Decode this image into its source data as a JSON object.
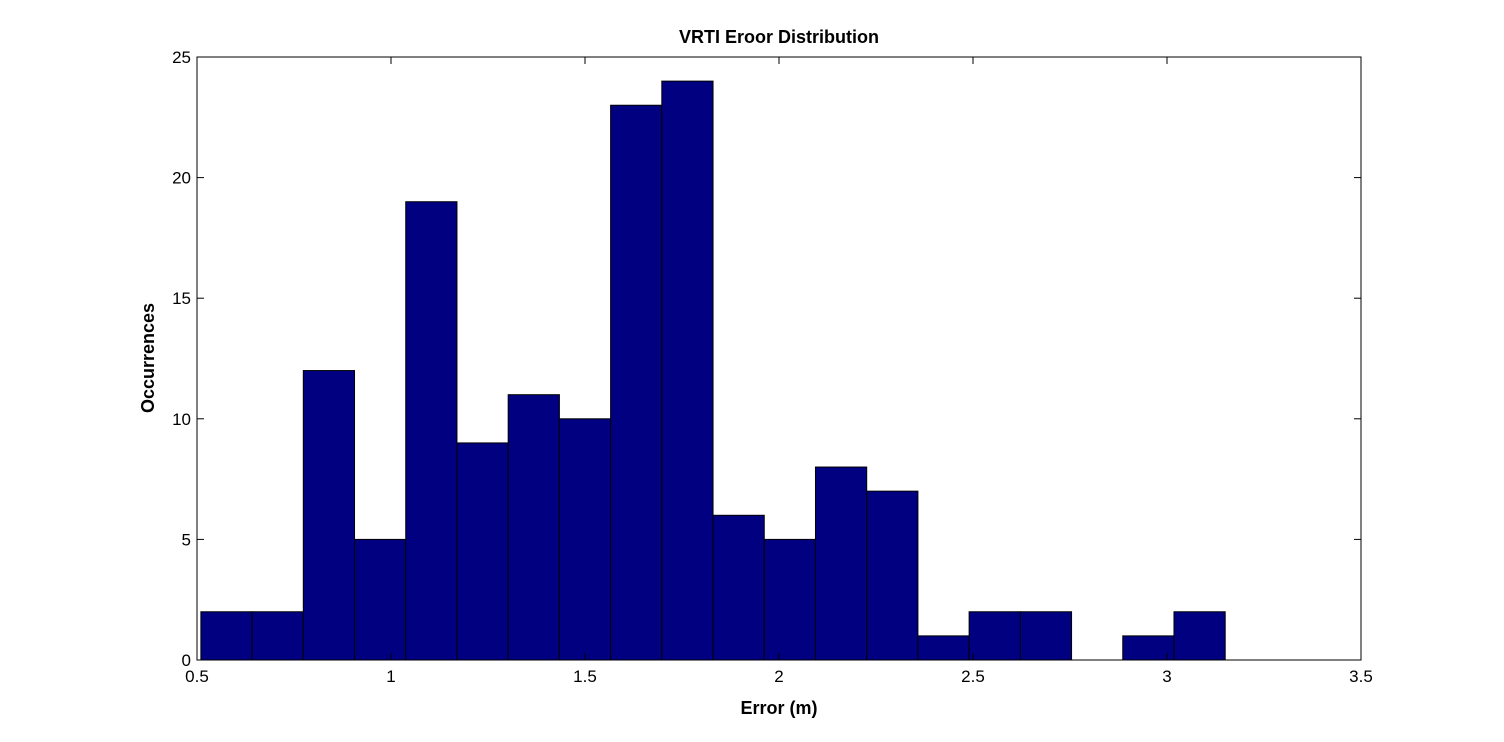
{
  "chart_data": {
    "type": "bar",
    "title": "VRTI Eroor Distribution",
    "xlabel": "Error (m)",
    "ylabel": "Occurrences",
    "xlim": [
      0.5,
      3.5
    ],
    "ylim": [
      0,
      25
    ],
    "xticks": [
      0.5,
      1,
      1.5,
      2,
      2.5,
      3,
      3.5
    ],
    "xtick_labels": [
      "0.5",
      "1",
      "1.5",
      "2",
      "2.5",
      "3",
      "3.5"
    ],
    "yticks": [
      0,
      5,
      10,
      15,
      20,
      25
    ],
    "ytick_labels": [
      "0",
      "5",
      "10",
      "15",
      "20",
      "25"
    ],
    "grid": false,
    "bar_color": "#000080",
    "bar_edge_color": "#000000",
    "bins": [
      {
        "x0": 0.51,
        "x1": 0.642,
        "count": 2
      },
      {
        "x0": 0.642,
        "x1": 0.774,
        "count": 2
      },
      {
        "x0": 0.774,
        "x1": 0.906,
        "count": 12
      },
      {
        "x0": 0.906,
        "x1": 1.038,
        "count": 5
      },
      {
        "x0": 1.038,
        "x1": 1.17,
        "count": 19
      },
      {
        "x0": 1.17,
        "x1": 1.302,
        "count": 9
      },
      {
        "x0": 1.302,
        "x1": 1.434,
        "count": 11
      },
      {
        "x0": 1.434,
        "x1": 1.566,
        "count": 10
      },
      {
        "x0": 1.566,
        "x1": 1.698,
        "count": 23
      },
      {
        "x0": 1.698,
        "x1": 1.83,
        "count": 24
      },
      {
        "x0": 1.83,
        "x1": 1.962,
        "count": 6
      },
      {
        "x0": 1.962,
        "x1": 2.094,
        "count": 5
      },
      {
        "x0": 2.094,
        "x1": 2.226,
        "count": 8
      },
      {
        "x0": 2.226,
        "x1": 2.358,
        "count": 7
      },
      {
        "x0": 2.358,
        "x1": 2.49,
        "count": 1
      },
      {
        "x0": 2.49,
        "x1": 2.622,
        "count": 2
      },
      {
        "x0": 2.622,
        "x1": 2.754,
        "count": 2
      },
      {
        "x0": 2.754,
        "x1": 2.886,
        "count": 0
      },
      {
        "x0": 2.886,
        "x1": 3.018,
        "count": 1
      },
      {
        "x0": 3.018,
        "x1": 3.15,
        "count": 2
      }
    ]
  }
}
